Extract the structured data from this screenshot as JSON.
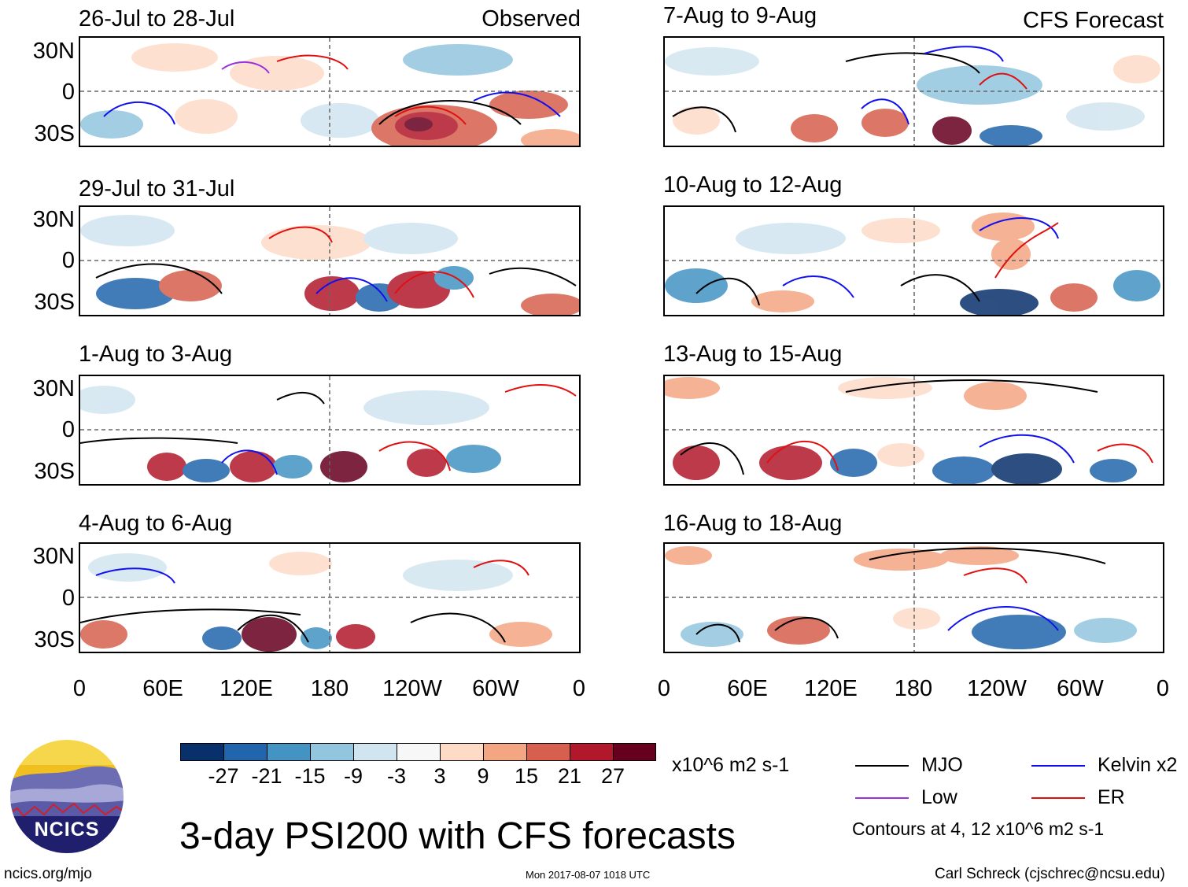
{
  "y_axis_labels": [
    "30N",
    "0",
    "30S"
  ],
  "x_axis_labels": [
    "0",
    "60E",
    "120E",
    "180",
    "120W",
    "60W",
    "0"
  ],
  "panels_left": [
    {
      "title": "26-Jul to 28-Jul",
      "label": "Observed"
    },
    {
      "title": "29-Jul to 31-Jul",
      "label": ""
    },
    {
      "title": "1-Aug to 3-Aug",
      "label": ""
    },
    {
      "title": "4-Aug to 6-Aug",
      "label": ""
    }
  ],
  "panels_right": [
    {
      "title": "7-Aug to 9-Aug",
      "label": "CFS Forecast"
    },
    {
      "title": "10-Aug to 12-Aug",
      "label": ""
    },
    {
      "title": "13-Aug to 15-Aug",
      "label": ""
    },
    {
      "title": "16-Aug to 18-Aug",
      "label": ""
    }
  ],
  "colorbar": {
    "colors": [
      "#08306b",
      "#2166ac",
      "#4393c3",
      "#92c5de",
      "#d1e5f0",
      "#f7f7f7",
      "#fddbc7",
      "#f4a582",
      "#d6604d",
      "#b2182b",
      "#67001f"
    ],
    "labels": [
      "-27",
      "-21",
      "-15",
      "-9",
      "-3",
      "3",
      "9",
      "15",
      "21",
      "27"
    ],
    "units": "x10^6 m2 s-1"
  },
  "legend": {
    "mjo": {
      "label": "MJO",
      "color": "#000000"
    },
    "kelvin": {
      "label": "Kelvin x2",
      "color": "#1010ee"
    },
    "low": {
      "label": "Low",
      "color": "#9b30e0"
    },
    "er": {
      "label": "ER",
      "color": "#e01010"
    },
    "contours_note": "Contours at 4, 12 x10^6 m2 s-1"
  },
  "main_title": "3-day PSI200 with CFS forecasts",
  "logo_text": "NCICS",
  "footer": {
    "url": "ncics.org/mjo",
    "timestamp": "Mon 2017-08-07 1018 UTC",
    "author": "Carl Schreck (cjschrec@ncsu.edu)"
  }
}
